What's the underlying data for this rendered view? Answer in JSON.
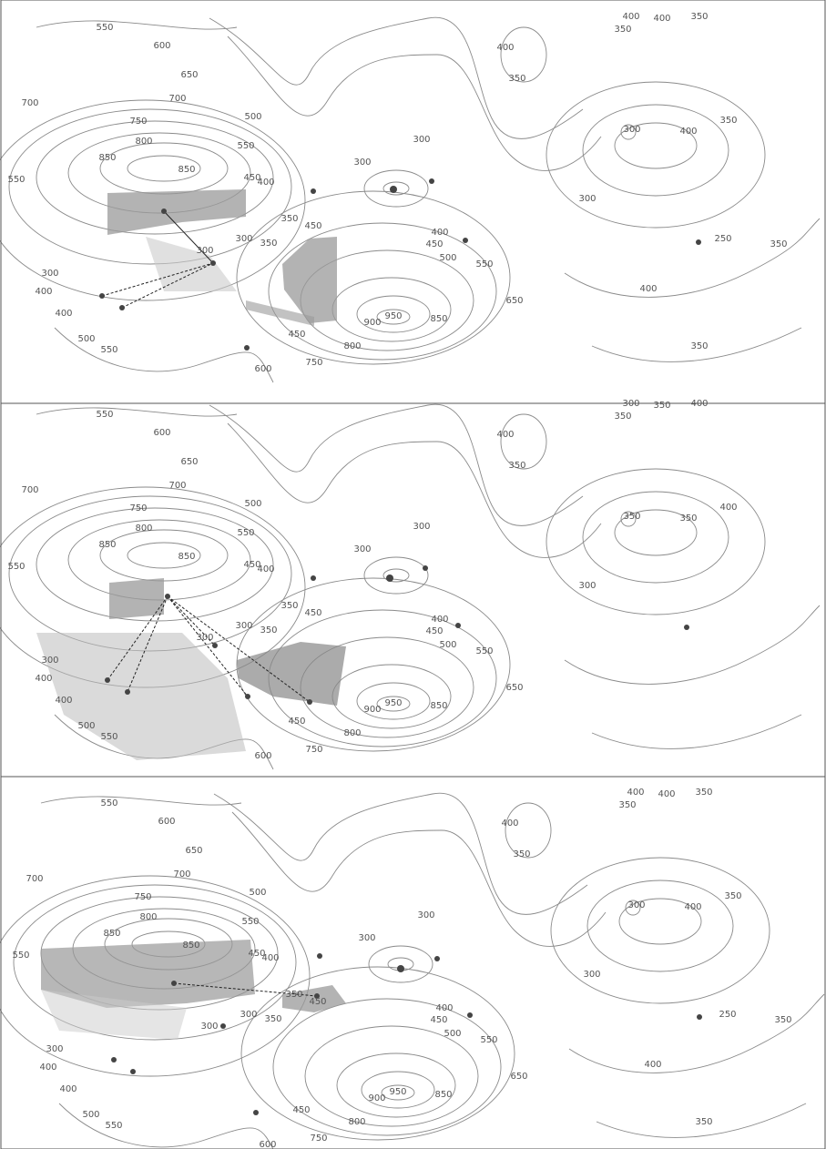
{
  "panels": [
    {
      "labels": [
        "550",
        "600",
        "650",
        "700",
        "700",
        "750",
        "800",
        "850",
        "850",
        "550",
        "550",
        "500",
        "450",
        "400",
        "300",
        "300",
        "350",
        "350",
        "450",
        "300",
        "300",
        "300",
        "400",
        "400",
        "500",
        "550",
        "400",
        "450",
        "500",
        "550",
        "650",
        "850",
        "950",
        "900",
        "800",
        "750",
        "600",
        "450",
        "400",
        "350",
        "400",
        "400",
        "350",
        "350",
        "300",
        "400",
        "350",
        "300",
        "250",
        "350",
        "400",
        "350"
      ]
    },
    {
      "labels": [
        "550",
        "600",
        "650",
        "700",
        "700",
        "750",
        "800",
        "850",
        "850",
        "550",
        "550",
        "500",
        "450",
        "400",
        "300",
        "300",
        "350",
        "350",
        "450",
        "300",
        "300",
        "300",
        "400",
        "400",
        "500",
        "550",
        "400",
        "450",
        "500",
        "550",
        "650",
        "850",
        "950",
        "900",
        "800",
        "750",
        "600",
        "450",
        "400",
        "350",
        "300",
        "350",
        "400",
        "350",
        "300",
        "350",
        "400",
        "350"
      ]
    },
    {
      "labels": [
        "550",
        "600",
        "650",
        "700",
        "700",
        "750",
        "800",
        "850",
        "850",
        "550",
        "550",
        "500",
        "450",
        "400",
        "300",
        "300",
        "350",
        "350",
        "450",
        "300",
        "300",
        "300",
        "400",
        "400",
        "500",
        "550",
        "400",
        "450",
        "500",
        "550",
        "650",
        "850",
        "950",
        "900",
        "800",
        "750",
        "600",
        "450",
        "400",
        "350",
        "400",
        "400",
        "350",
        "350",
        "300",
        "400",
        "350",
        "300",
        "250",
        "350",
        "400",
        "350"
      ]
    }
  ]
}
